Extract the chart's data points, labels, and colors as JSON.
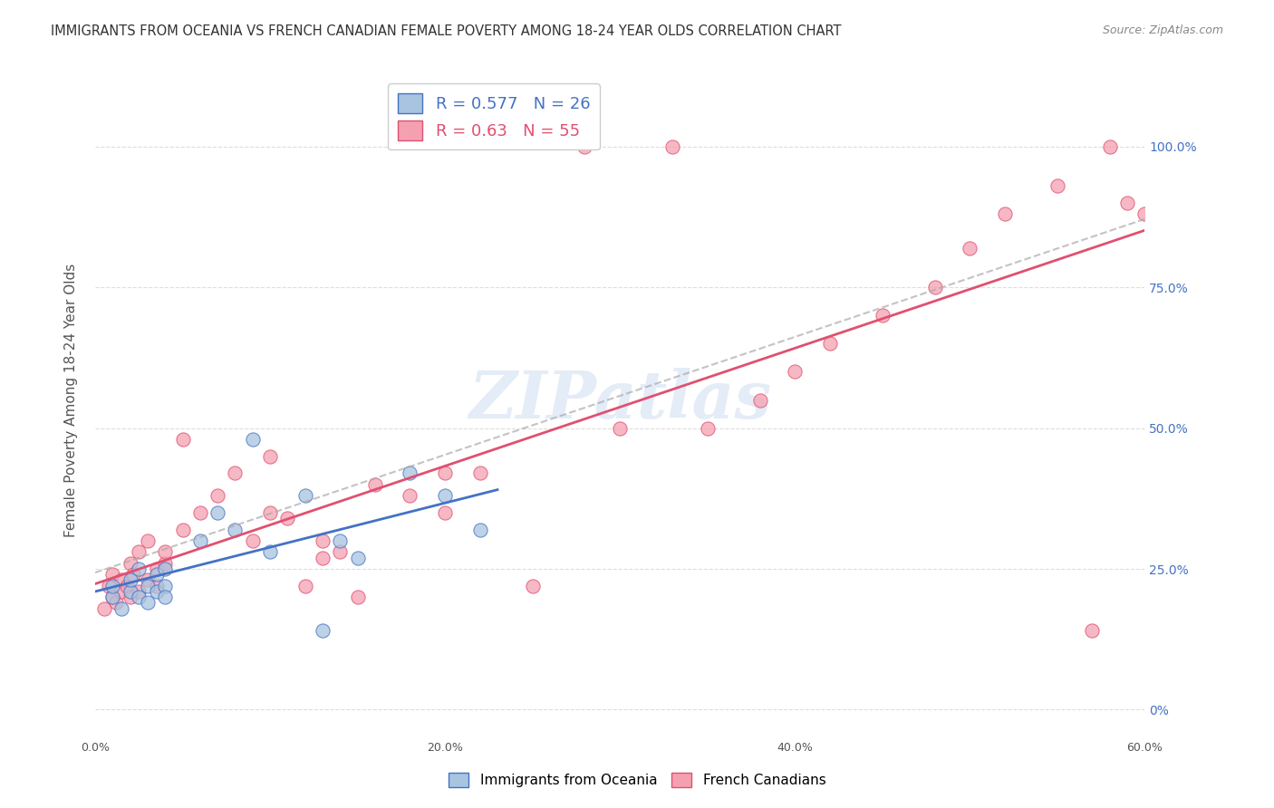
{
  "title": "IMMIGRANTS FROM OCEANIA VS FRENCH CANADIAN FEMALE POVERTY AMONG 18-24 YEAR OLDS CORRELATION CHART",
  "source": "Source: ZipAtlas.com",
  "ylabel": "Female Poverty Among 18-24 Year Olds",
  "xlabel_ticks": [
    "0.0%",
    "20.0%",
    "40.0%",
    "60.0%"
  ],
  "ytick_labels": [
    "0%",
    "25.0%",
    "50.0%",
    "75.0%",
    "100.0%"
  ],
  "xlim": [
    0,
    0.6
  ],
  "ylim": [
    -0.05,
    1.15
  ],
  "R_oceania": 0.577,
  "N_oceania": 26,
  "R_french": 0.63,
  "N_french": 55,
  "title_fontsize": 11,
  "source_fontsize": 9,
  "watermark": "ZIPatlas",
  "background_color": "#ffffff",
  "grid_color": "#dddddd",
  "oceania_color": "#a8c4e0",
  "oceania_line_color": "#4472c4",
  "french_color": "#f4a0b0",
  "french_line_color": "#e05070",
  "oceania_scatter_x": [
    0.01,
    0.01,
    0.015,
    0.02,
    0.02,
    0.025,
    0.025,
    0.03,
    0.03,
    0.035,
    0.035,
    0.04,
    0.04,
    0.04,
    0.06,
    0.07,
    0.08,
    0.09,
    0.1,
    0.12,
    0.13,
    0.14,
    0.15,
    0.18,
    0.2,
    0.22
  ],
  "oceania_scatter_y": [
    0.2,
    0.22,
    0.18,
    0.21,
    0.23,
    0.2,
    0.25,
    0.22,
    0.19,
    0.21,
    0.24,
    0.22,
    0.2,
    0.25,
    0.3,
    0.35,
    0.32,
    0.48,
    0.28,
    0.38,
    0.14,
    0.3,
    0.27,
    0.42,
    0.38,
    0.32
  ],
  "french_scatter_x": [
    0.005,
    0.008,
    0.01,
    0.01,
    0.012,
    0.015,
    0.015,
    0.018,
    0.02,
    0.02,
    0.022,
    0.025,
    0.025,
    0.03,
    0.03,
    0.035,
    0.035,
    0.04,
    0.04,
    0.05,
    0.05,
    0.06,
    0.07,
    0.08,
    0.09,
    0.1,
    0.1,
    0.11,
    0.12,
    0.13,
    0.13,
    0.14,
    0.15,
    0.16,
    0.18,
    0.2,
    0.2,
    0.22,
    0.25,
    0.28,
    0.3,
    0.33,
    0.35,
    0.38,
    0.4,
    0.42,
    0.45,
    0.48,
    0.5,
    0.52,
    0.55,
    0.57,
    0.58,
    0.59,
    0.6
  ],
  "french_scatter_y": [
    0.18,
    0.22,
    0.2,
    0.24,
    0.19,
    0.21,
    0.23,
    0.22,
    0.2,
    0.26,
    0.24,
    0.21,
    0.28,
    0.23,
    0.3,
    0.25,
    0.22,
    0.26,
    0.28,
    0.32,
    0.48,
    0.35,
    0.38,
    0.42,
    0.3,
    0.35,
    0.45,
    0.34,
    0.22,
    0.27,
    0.3,
    0.28,
    0.2,
    0.4,
    0.38,
    0.35,
    0.42,
    0.42,
    0.22,
    1.0,
    0.5,
    1.0,
    0.5,
    0.55,
    0.6,
    0.65,
    0.7,
    0.75,
    0.82,
    0.88,
    0.93,
    0.14,
    1.0,
    0.9,
    0.88
  ]
}
